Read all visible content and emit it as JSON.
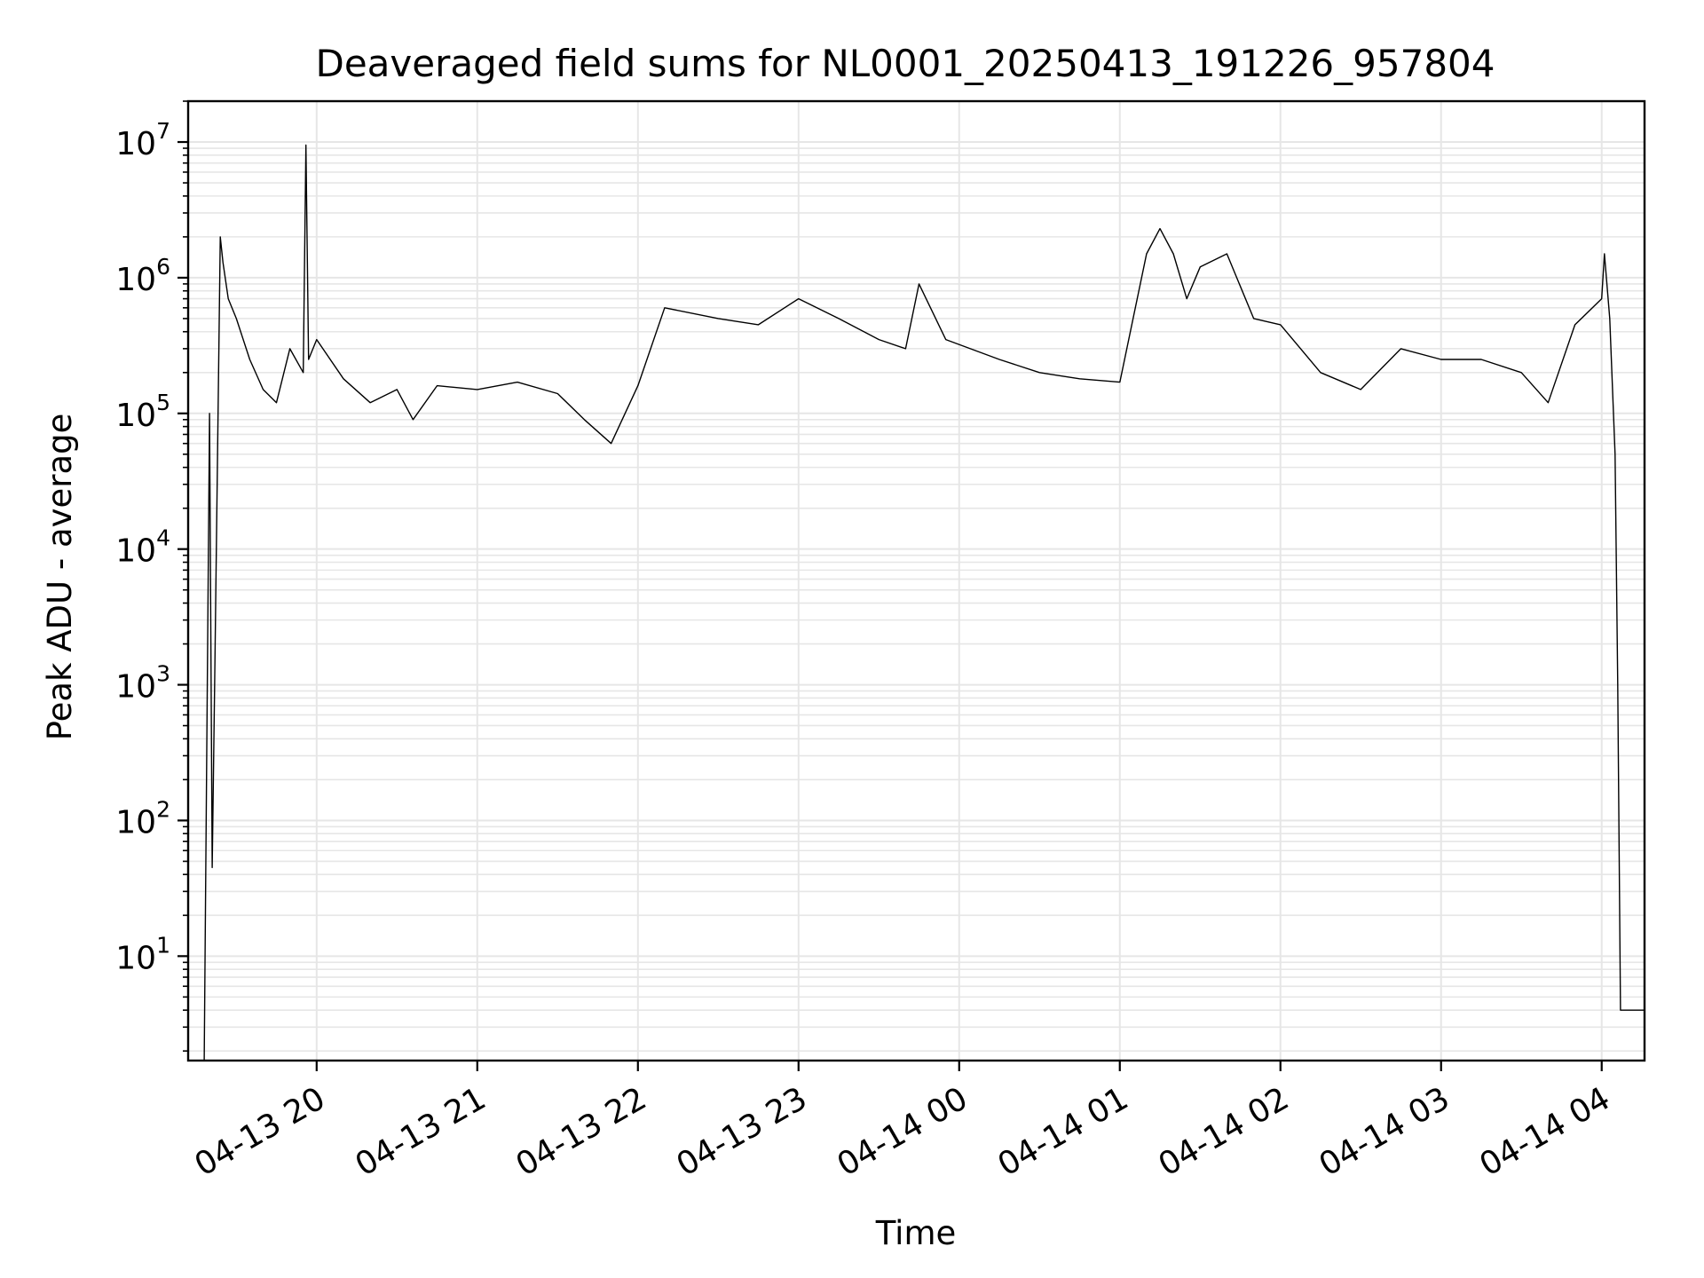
{
  "chart_data": {
    "type": "line",
    "title": "Deaveraged field sums for NL0001_20250413_191226_957804",
    "xlabel": "Time",
    "ylabel": "Peak ADU - average",
    "y_scale": "log",
    "ylim": [
      1.7,
      20000000
    ],
    "xlim": [
      "2025-04-13 19:12",
      "2025-04-14 04:16"
    ],
    "grid": true,
    "line_color": "#000000",
    "grid_color": "#e6e6e6",
    "x_ticks": [
      {
        "t": "2025-04-13 20:00",
        "label": "04-13 20"
      },
      {
        "t": "2025-04-13 21:00",
        "label": "04-13 21"
      },
      {
        "t": "2025-04-13 22:00",
        "label": "04-13 22"
      },
      {
        "t": "2025-04-13 23:00",
        "label": "04-13 23"
      },
      {
        "t": "2025-04-14 00:00",
        "label": "04-14 00"
      },
      {
        "t": "2025-04-14 01:00",
        "label": "04-14 01"
      },
      {
        "t": "2025-04-14 02:00",
        "label": "04-14 02"
      },
      {
        "t": "2025-04-14 03:00",
        "label": "04-14 03"
      },
      {
        "t": "2025-04-14 04:00",
        "label": "04-14 04"
      }
    ],
    "y_ticks": [
      {
        "v": 10,
        "base": "10",
        "exp": "1"
      },
      {
        "v": 100,
        "base": "10",
        "exp": "2"
      },
      {
        "v": 1000,
        "base": "10",
        "exp": "3"
      },
      {
        "v": 10000,
        "base": "10",
        "exp": "4"
      },
      {
        "v": 100000,
        "base": "10",
        "exp": "5"
      },
      {
        "v": 1000000,
        "base": "10",
        "exp": "6"
      },
      {
        "v": 10000000,
        "base": "10",
        "exp": "7"
      }
    ],
    "series": [
      {
        "x": [
          "2025-04-13 19:18",
          "2025-04-13 19:20",
          "2025-04-13 19:21",
          "2025-04-13 19:22",
          "2025-04-13 19:24",
          "2025-04-13 19:25",
          "2025-04-13 19:27",
          "2025-04-13 19:30",
          "2025-04-13 19:35",
          "2025-04-13 19:40",
          "2025-04-13 19:45",
          "2025-04-13 19:50",
          "2025-04-13 19:55",
          "2025-04-13 19:56",
          "2025-04-13 19:57",
          "2025-04-13 20:00",
          "2025-04-13 20:10",
          "2025-04-13 20:20",
          "2025-04-13 20:30",
          "2025-04-13 20:36",
          "2025-04-13 20:45",
          "2025-04-13 21:00",
          "2025-04-13 21:15",
          "2025-04-13 21:30",
          "2025-04-13 21:40",
          "2025-04-13 21:50",
          "2025-04-13 22:00",
          "2025-04-13 22:10",
          "2025-04-13 22:30",
          "2025-04-13 22:45",
          "2025-04-13 23:00",
          "2025-04-13 23:15",
          "2025-04-13 23:30",
          "2025-04-13 23:40",
          "2025-04-13 23:45",
          "2025-04-13 23:55",
          "2025-04-14 00:15",
          "2025-04-14 00:30",
          "2025-04-14 00:45",
          "2025-04-14 01:00",
          "2025-04-14 01:10",
          "2025-04-14 01:15",
          "2025-04-14 01:20",
          "2025-04-14 01:25",
          "2025-04-14 01:30",
          "2025-04-14 01:40",
          "2025-04-14 01:50",
          "2025-04-14 02:00",
          "2025-04-14 02:15",
          "2025-04-14 02:30",
          "2025-04-14 02:45",
          "2025-04-14 03:00",
          "2025-04-14 03:15",
          "2025-04-14 03:30",
          "2025-04-14 03:40",
          "2025-04-14 03:50",
          "2025-04-14 04:00",
          "2025-04-14 04:01",
          "2025-04-14 04:03",
          "2025-04-14 04:05",
          "2025-04-14 04:06",
          "2025-04-14 04:07",
          "2025-04-14 04:16"
        ],
        "y": [
          1.7,
          100000,
          45,
          1500,
          2000000,
          1300000,
          700000,
          500000,
          250000,
          150000,
          120000,
          300000,
          200000,
          9500000,
          250000,
          350000,
          180000,
          120000,
          150000,
          90000,
          160000,
          150000,
          170000,
          140000,
          90000,
          60000,
          160000,
          600000,
          500000,
          450000,
          700000,
          500000,
          350000,
          300000,
          900000,
          350000,
          250000,
          200000,
          180000,
          170000,
          1500000,
          2300000,
          1500000,
          700000,
          1200000,
          1500000,
          500000,
          450000,
          200000,
          150000,
          300000,
          250000,
          250000,
          200000,
          120000,
          450000,
          700000,
          1500000,
          500000,
          50000,
          1000,
          4,
          4
        ]
      }
    ]
  }
}
